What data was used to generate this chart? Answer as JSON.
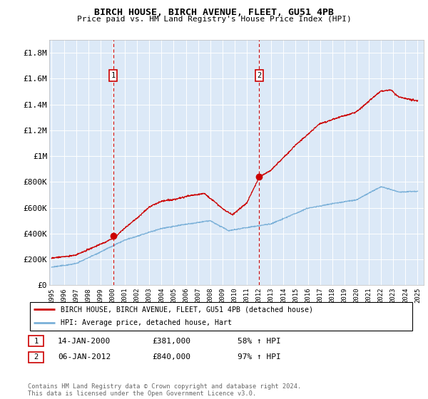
{
  "title": "BIRCH HOUSE, BIRCH AVENUE, FLEET, GU51 4PB",
  "subtitle": "Price paid vs. HM Land Registry's House Price Index (HPI)",
  "background_color": "white",
  "plot_bg_color": "#dce9f7",
  "hpi_line_color": "#7ab0d8",
  "price_line_color": "#cc0000",
  "ylim": [
    0,
    1900000
  ],
  "yticks": [
    0,
    200000,
    400000,
    600000,
    800000,
    1000000,
    1200000,
    1400000,
    1600000,
    1800000
  ],
  "ytick_labels": [
    "£0",
    "£200K",
    "£400K",
    "£600K",
    "£800K",
    "£1M",
    "£1.2M",
    "£1.4M",
    "£1.6M",
    "£1.8M"
  ],
  "xlim_start": 1994.8,
  "xlim_end": 2025.5,
  "sale1_x": 2000.04,
  "sale1_y": 381000,
  "sale1_label": "1",
  "sale1_date": "14-JAN-2000",
  "sale1_price": "£381,000",
  "sale1_hpi": "58% ↑ HPI",
  "sale2_x": 2012.02,
  "sale2_y": 840000,
  "sale2_label": "2",
  "sale2_date": "06-JAN-2012",
  "sale2_price": "£840,000",
  "sale2_hpi": "97% ↑ HPI",
  "legend_label_red": "BIRCH HOUSE, BIRCH AVENUE, FLEET, GU51 4PB (detached house)",
  "legend_label_blue": "HPI: Average price, detached house, Hart",
  "footer": "Contains HM Land Registry data © Crown copyright and database right 2024.\nThis data is licensed under the Open Government Licence v3.0."
}
